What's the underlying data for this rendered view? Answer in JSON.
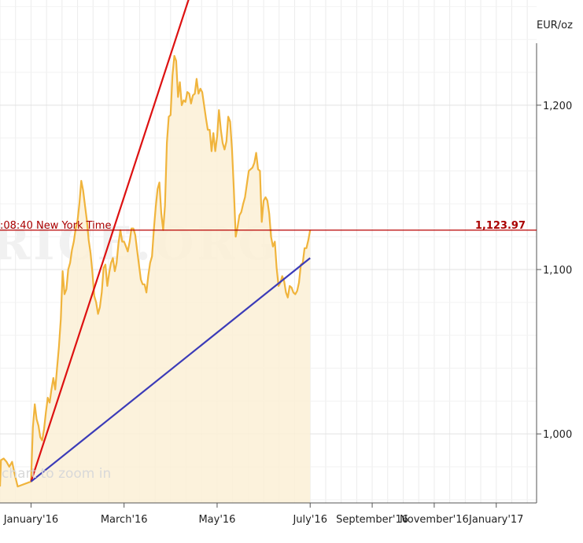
{
  "chart_data": {
    "type": "area",
    "unit_label": "EUR/oz",
    "timestamp_label": ":08:40 New York Time",
    "last_value_label": "1,123.97",
    "last_value": 1123.97,
    "zoom_hint": "chart to zoom in",
    "watermark": "RICE.ORG",
    "y_ticks": [
      {
        "value": 1000,
        "label": "1,000"
      },
      {
        "value": 1100,
        "label": "1,100"
      },
      {
        "value": 1200,
        "label": "1,200"
      }
    ],
    "x_ticks": [
      {
        "x": 0,
        "label": "January'16"
      },
      {
        "x": 3,
        "label": "March'16"
      },
      {
        "x": 6,
        "label": "May'16"
      },
      {
        "x": 9,
        "label": "July'16"
      },
      {
        "x": 11,
        "label": "September'16"
      },
      {
        "x": 13,
        "label": "November'16"
      },
      {
        "x": 15,
        "label": "January'17"
      }
    ],
    "ylim": [
      958,
      1264
    ],
    "xlim": [
      -1,
      16.3
    ],
    "grid": true,
    "colors": {
      "line": "#f0b43c",
      "fill": "#fbf0d6",
      "trend_red": "#dd1111",
      "trend_blue": "#3b3bb8",
      "hline": "#b80000"
    },
    "series": [
      {
        "values": [
          [
            -1,
            968
          ],
          [
            -0.97,
            984
          ],
          [
            -0.88,
            985
          ],
          [
            -0.79,
            983
          ],
          [
            -0.7,
            980
          ],
          [
            -0.61,
            983
          ],
          [
            -0.52,
            975
          ],
          [
            -0.43,
            968
          ],
          [
            0,
            971
          ],
          [
            0.06,
            1004
          ],
          [
            0.12,
            1018
          ],
          [
            0.18,
            1009
          ],
          [
            0.24,
            1005
          ],
          [
            0.3,
            998
          ],
          [
            0.36,
            996
          ],
          [
            0.42,
            1003
          ],
          [
            0.48,
            1013
          ],
          [
            0.54,
            1022
          ],
          [
            0.6,
            1019
          ],
          [
            0.66,
            1027
          ],
          [
            0.72,
            1034
          ],
          [
            0.78,
            1027
          ],
          [
            0.84,
            1040
          ],
          [
            0.9,
            1053
          ],
          [
            0.96,
            1070
          ],
          [
            1.02,
            1099
          ],
          [
            1.08,
            1085
          ],
          [
            1.14,
            1088
          ],
          [
            1.2,
            1100
          ],
          [
            1.26,
            1104
          ],
          [
            1.32,
            1112
          ],
          [
            1.38,
            1117
          ],
          [
            1.44,
            1125
          ],
          [
            1.5,
            1130
          ],
          [
            1.56,
            1140
          ],
          [
            1.62,
            1154
          ],
          [
            1.68,
            1148
          ],
          [
            1.74,
            1139
          ],
          [
            1.8,
            1130
          ],
          [
            1.86,
            1118
          ],
          [
            1.92,
            1110
          ],
          [
            1.98,
            1098
          ],
          [
            2.04,
            1084
          ],
          [
            2.1,
            1080
          ],
          [
            2.16,
            1073
          ],
          [
            2.22,
            1077
          ],
          [
            2.28,
            1086
          ],
          [
            2.34,
            1101
          ],
          [
            2.4,
            1103
          ],
          [
            2.46,
            1090
          ],
          [
            2.52,
            1098
          ],
          [
            2.58,
            1104
          ],
          [
            2.64,
            1107
          ],
          [
            2.7,
            1099
          ],
          [
            2.76,
            1104
          ],
          [
            2.82,
            1116
          ],
          [
            2.88,
            1124
          ],
          [
            2.94,
            1117
          ],
          [
            3.0,
            1117
          ],
          [
            3.06,
            1114
          ],
          [
            3.12,
            1111
          ],
          [
            3.18,
            1117
          ],
          [
            3.24,
            1125
          ],
          [
            3.3,
            1125
          ],
          [
            3.36,
            1121
          ],
          [
            3.42,
            1112
          ],
          [
            3.48,
            1103
          ],
          [
            3.54,
            1094
          ],
          [
            3.6,
            1091
          ],
          [
            3.66,
            1091
          ],
          [
            3.72,
            1086
          ],
          [
            3.78,
            1096
          ],
          [
            3.84,
            1104
          ],
          [
            3.9,
            1108
          ],
          [
            3.96,
            1124
          ],
          [
            4.02,
            1138
          ],
          [
            4.08,
            1149
          ],
          [
            4.14,
            1153
          ],
          [
            4.2,
            1134
          ],
          [
            4.26,
            1124
          ],
          [
            4.32,
            1139
          ],
          [
            4.38,
            1177
          ],
          [
            4.44,
            1193
          ],
          [
            4.5,
            1194
          ],
          [
            4.56,
            1218
          ],
          [
            4.62,
            1230
          ],
          [
            4.68,
            1227
          ],
          [
            4.74,
            1205
          ],
          [
            4.8,
            1214
          ],
          [
            4.86,
            1200
          ],
          [
            4.92,
            1203
          ],
          [
            4.98,
            1202
          ],
          [
            5.04,
            1208
          ],
          [
            5.1,
            1207
          ],
          [
            5.16,
            1201
          ],
          [
            5.22,
            1206
          ],
          [
            5.28,
            1207
          ],
          [
            5.34,
            1216
          ],
          [
            5.4,
            1207
          ],
          [
            5.46,
            1210
          ],
          [
            5.52,
            1208
          ],
          [
            5.58,
            1200
          ],
          [
            5.64,
            1192
          ],
          [
            5.7,
            1185
          ],
          [
            5.76,
            1185
          ],
          [
            5.82,
            1172
          ],
          [
            5.88,
            1183
          ],
          [
            5.94,
            1172
          ],
          [
            6.0,
            1181
          ],
          [
            6.06,
            1197
          ],
          [
            6.12,
            1185
          ],
          [
            6.18,
            1177
          ],
          [
            6.24,
            1173
          ],
          [
            6.3,
            1178
          ],
          [
            6.36,
            1193
          ],
          [
            6.42,
            1190
          ],
          [
            6.48,
            1173
          ],
          [
            6.54,
            1149
          ],
          [
            6.6,
            1120
          ],
          [
            6.66,
            1126
          ],
          [
            6.72,
            1133
          ],
          [
            6.78,
            1135
          ],
          [
            6.84,
            1140
          ],
          [
            6.9,
            1144
          ],
          [
            6.96,
            1152
          ],
          [
            7.02,
            1160
          ],
          [
            7.08,
            1161
          ],
          [
            7.14,
            1162
          ],
          [
            7.2,
            1165
          ],
          [
            7.26,
            1171
          ],
          [
            7.32,
            1161
          ],
          [
            7.38,
            1160
          ],
          [
            7.44,
            1129
          ],
          [
            7.5,
            1142
          ],
          [
            7.56,
            1144
          ],
          [
            7.62,
            1142
          ],
          [
            7.68,
            1134
          ],
          [
            7.74,
            1120
          ],
          [
            7.8,
            1114
          ],
          [
            7.86,
            1117
          ],
          [
            7.92,
            1101
          ],
          [
            7.98,
            1090
          ],
          [
            8.04,
            1092
          ],
          [
            8.1,
            1096
          ],
          [
            8.16,
            1093
          ],
          [
            8.22,
            1086
          ],
          [
            8.28,
            1083
          ],
          [
            8.34,
            1090
          ],
          [
            8.4,
            1089
          ],
          [
            8.46,
            1086
          ],
          [
            8.52,
            1085
          ],
          [
            8.58,
            1087
          ],
          [
            8.64,
            1092
          ],
          [
            8.7,
            1103
          ],
          [
            8.76,
            1104
          ],
          [
            8.82,
            1113
          ],
          [
            8.88,
            1113
          ],
          [
            8.94,
            1118
          ],
          [
            9.0,
            1123.97
          ]
        ]
      }
    ],
    "trendlines": [
      {
        "color": "red",
        "from": [
          0,
          971
        ],
        "to": [
          5.7,
          1300
        ]
      },
      {
        "color": "blue",
        "from": [
          0,
          971
        ],
        "to": [
          9.0,
          1107
        ]
      }
    ]
  }
}
